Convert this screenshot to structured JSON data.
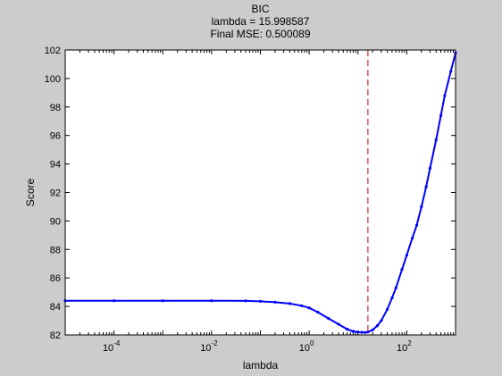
{
  "chart_data": {
    "type": "line",
    "title_lines": [
      "BIC",
      "lambda = 15.998587",
      "Final MSE: 0.500089"
    ],
    "xlabel": "lambda",
    "ylabel": "Score",
    "xscale": "log",
    "xlim": [
      1e-05,
      1000
    ],
    "ylim": [
      82,
      102
    ],
    "grid": false,
    "legend": "none",
    "x_ticks": [
      {
        "base": "10",
        "exp": "-4",
        "value": 0.0001
      },
      {
        "base": "10",
        "exp": "-2",
        "value": 0.01
      },
      {
        "base": "10",
        "exp": "0",
        "value": 1
      },
      {
        "base": "10",
        "exp": "2",
        "value": 100
      }
    ],
    "y_ticks": [
      82,
      84,
      86,
      88,
      90,
      92,
      94,
      96,
      98,
      100,
      102
    ],
    "series": [
      {
        "color": "#0000ff",
        "marker": "dot",
        "x": [
          1e-05,
          0.0001,
          0.001,
          0.01,
          0.05,
          0.1,
          0.2,
          0.4,
          0.7,
          1.0,
          1.5,
          2.5,
          4,
          6,
          8,
          10,
          12,
          14,
          16,
          20,
          25,
          30,
          40,
          50,
          60,
          80,
          100,
          130,
          160,
          200,
          250,
          300,
          400,
          500,
          600,
          800,
          1000
        ],
        "y": [
          84.4,
          84.4,
          84.4,
          84.4,
          84.39,
          84.36,
          84.3,
          84.2,
          84.05,
          83.9,
          83.6,
          83.15,
          82.75,
          82.4,
          82.25,
          82.2,
          82.18,
          82.17,
          82.2,
          82.35,
          82.65,
          83.0,
          83.8,
          84.6,
          85.3,
          86.6,
          87.6,
          88.8,
          89.7,
          91.0,
          92.4,
          93.7,
          95.7,
          97.4,
          98.8,
          100.5,
          101.8
        ]
      }
    ],
    "annotation": {
      "type": "vline",
      "x": 15.998587,
      "color": "#cc0000",
      "style": "dashed"
    }
  }
}
